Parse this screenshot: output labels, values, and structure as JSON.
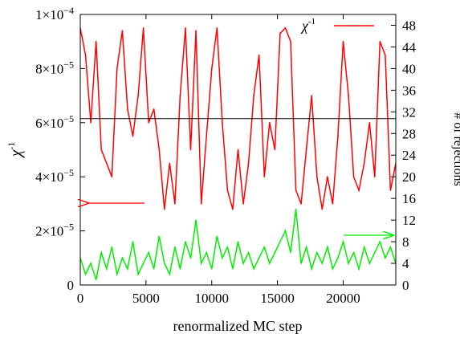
{
  "chart_data": {
    "type": "line",
    "xlabel": "renormalized MC step",
    "ylabel_left": "χ⁻¹",
    "ylabel_right": "# of rejections",
    "xlim": [
      0,
      24000
    ],
    "ylim_left": [
      0,
      0.0001
    ],
    "ylim_right": [
      0,
      50
    ],
    "x_ticks": [
      "0",
      "5000",
      "10000",
      "15000",
      "20000"
    ],
    "x_tick_values": [
      0,
      5000,
      10000,
      15000,
      20000
    ],
    "y_left_tick_values": [
      0,
      2e-05,
      4e-05,
      6e-05,
      8e-05,
      0.0001
    ],
    "y_left_tick_mantissa": [
      "",
      "2×10",
      "4×10",
      "6×10",
      "8×10",
      "1×10"
    ],
    "y_left_tick_exponent": [
      "",
      "−5",
      "−5",
      "−5",
      "−5",
      "−4"
    ],
    "y_left_tick_zero": "0",
    "y_right_ticks": [
      "0",
      "4",
      "8",
      "12",
      "16",
      "20",
      "24",
      "28",
      "32",
      "36",
      "40",
      "44",
      "48"
    ],
    "y_right_tick_values": [
      0,
      4,
      8,
      12,
      16,
      20,
      24,
      28,
      32,
      36,
      40,
      44,
      48
    ],
    "reference_line_left": 6.15e-05,
    "legend": {
      "label": "χ",
      "exponent": "-1",
      "position": "top-right"
    },
    "colors": {
      "chi_inverse": "#ff0000",
      "rejections": "#00ee00",
      "reference": "#000000"
    },
    "series": [
      {
        "name": "χ⁻¹",
        "axis": "left",
        "color": "#ff0000",
        "x": [
          0,
          400,
          800,
          1200,
          1600,
          2000,
          2400,
          2800,
          3200,
          3600,
          4000,
          4400,
          4800,
          5200,
          5600,
          6000,
          6400,
          6800,
          7200,
          7600,
          8000,
          8400,
          8800,
          9200,
          9600,
          10000,
          10400,
          10800,
          11200,
          11600,
          12000,
          12400,
          12800,
          13200,
          13600,
          14000,
          14400,
          14800,
          15200,
          15600,
          16000,
          16400,
          16800,
          17200,
          17600,
          18000,
          18400,
          18800,
          19200,
          19600,
          20000,
          20400,
          20800,
          21200,
          21600,
          22000,
          22400,
          22800,
          23200,
          23600,
          24000
        ],
        "y": [
          9.5e-05,
          8.5e-05,
          6e-05,
          9e-05,
          5e-05,
          4.5e-05,
          4e-05,
          8e-05,
          9.4e-05,
          6.5e-05,
          5.5e-05,
          7e-05,
          9.5e-05,
          6e-05,
          6.5e-05,
          5e-05,
          2.8e-05,
          4.5e-05,
          3e-05,
          7e-05,
          9.5e-05,
          5e-05,
          9.4e-05,
          3e-05,
          5.5e-05,
          8e-05,
          9.5e-05,
          6e-05,
          3.5e-05,
          2.8e-05,
          5e-05,
          3e-05,
          4.5e-05,
          7e-05,
          8.5e-05,
          4e-05,
          6e-05,
          5e-05,
          9.3e-05,
          9.5e-05,
          9e-05,
          3.5e-05,
          3e-05,
          5e-05,
          7e-05,
          4e-05,
          2.8e-05,
          4e-05,
          3e-05,
          5.5e-05,
          9e-05,
          7e-05,
          4e-05,
          3.5e-05,
          4.5e-05,
          6e-05,
          4e-05,
          9e-05,
          8.5e-05,
          3.5e-05,
          4.5e-05
        ]
      },
      {
        "name": "# of rejections",
        "axis": "right",
        "color": "#00ee00",
        "x": [
          0,
          400,
          800,
          1200,
          1600,
          2000,
          2400,
          2800,
          3200,
          3600,
          4000,
          4400,
          4800,
          5200,
          5600,
          6000,
          6400,
          6800,
          7200,
          7600,
          8000,
          8400,
          8800,
          9200,
          9600,
          10000,
          10400,
          10800,
          11200,
          11600,
          12000,
          12400,
          12800,
          13200,
          13600,
          14000,
          14400,
          14800,
          15200,
          15600,
          16000,
          16400,
          16800,
          17200,
          17600,
          18000,
          18400,
          18800,
          19200,
          19600,
          20000,
          20400,
          20800,
          21200,
          21600,
          22000,
          22400,
          22800,
          23200,
          23600,
          24000
        ],
        "y": [
          5,
          2,
          4,
          1,
          6,
          3,
          7,
          2,
          5,
          3,
          8,
          2,
          4,
          6,
          3,
          9,
          4,
          2,
          7,
          3,
          8,
          5,
          12,
          4,
          6,
          3,
          9,
          5,
          7,
          3,
          8,
          4,
          6,
          3,
          5,
          7,
          4,
          6,
          8,
          10,
          6,
          14,
          4,
          7,
          3,
          6,
          4,
          7,
          3,
          5,
          8,
          4,
          6,
          3,
          7,
          4,
          6,
          8,
          5,
          7,
          4
        ]
      }
    ],
    "annotations": [
      {
        "text": "arrow pointing left (χ⁻¹ → left axis)",
        "color": "#ff0000",
        "x_data": 2000,
        "y_left": 3e-05
      },
      {
        "text": "arrow pointing right (rejections → right axis)",
        "color": "#00ee00",
        "x_data": 22000,
        "y_right": 9.5
      }
    ]
  }
}
